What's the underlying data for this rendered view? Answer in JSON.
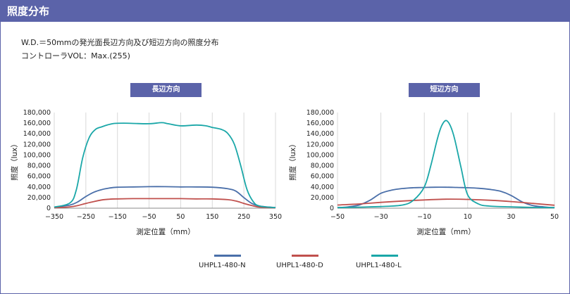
{
  "header": {
    "title": "照度分布"
  },
  "description": {
    "line1": "W.D.＝50mmの発光面長辺方向及び短辺方向の照度分布",
    "line2": "コントローラVOL：Max.(255)"
  },
  "colors": {
    "accent": "#5b63a9",
    "N": "#4a6fa9",
    "D": "#c0504d",
    "L": "#1aa7a8"
  },
  "legend": [
    {
      "key": "N",
      "label": "UHPL1-480-N"
    },
    {
      "key": "D",
      "label": "UHPL1-480-D"
    },
    {
      "key": "L",
      "label": "UHPL1-480-L"
    }
  ],
  "chart_data": [
    {
      "type": "line",
      "title": "長辺方向",
      "xlabel": "測定位置（mm）",
      "ylabel": "照度（lux）",
      "xlim": [
        -350,
        350
      ],
      "ylim": [
        0,
        180000
      ],
      "xticks": [
        -350,
        -250,
        -150,
        -50,
        50,
        150,
        250,
        350
      ],
      "xtick_labels": [
        "−350",
        "−250",
        "−150",
        "−50",
        "50",
        "150",
        "250",
        "350"
      ],
      "yticks": [
        0,
        20000,
        40000,
        60000,
        80000,
        100000,
        120000,
        140000,
        160000,
        180000
      ],
      "ytick_labels": [
        "0",
        "20,000",
        "40,000",
        "60,000",
        "80,000",
        "100,000",
        "120,000",
        "140,000",
        "160,000",
        "180,000"
      ],
      "grid": "vertical",
      "series": [
        {
          "name": "UHPL1-480-N",
          "key": "N",
          "x": [
            -350,
            -300,
            -275,
            -250,
            -225,
            -200,
            -175,
            -150,
            -100,
            -50,
            0,
            50,
            100,
            150,
            200,
            225,
            250,
            275,
            300,
            350
          ],
          "y": [
            2000,
            6000,
            12000,
            22000,
            30000,
            35000,
            38000,
            39500,
            40000,
            40500,
            40500,
            40000,
            40000,
            39500,
            36500,
            32000,
            20000,
            9000,
            4000,
            1000
          ]
        },
        {
          "name": "UHPL1-480-D",
          "key": "D",
          "x": [
            -350,
            -300,
            -275,
            -250,
            -225,
            -200,
            -175,
            -150,
            -100,
            -50,
            0,
            50,
            100,
            150,
            200,
            225,
            250,
            275,
            300,
            350
          ],
          "y": [
            1000,
            2500,
            5000,
            9000,
            12500,
            15500,
            17000,
            17500,
            18000,
            18000,
            18000,
            18000,
            17500,
            17500,
            16000,
            13500,
            9000,
            5000,
            2000,
            500
          ]
        },
        {
          "name": "UHPL1-480-L",
          "key": "L",
          "x": [
            -350,
            -300,
            -280,
            -260,
            -240,
            -220,
            -200,
            -180,
            -160,
            -130,
            -100,
            -50,
            -10,
            10,
            50,
            100,
            130,
            150,
            180,
            200,
            220,
            240,
            260,
            280,
            300,
            350
          ],
          "y": [
            2000,
            10000,
            35000,
            95000,
            132000,
            148000,
            153000,
            157000,
            159500,
            160000,
            159500,
            159000,
            161000,
            159000,
            155000,
            156500,
            155000,
            152000,
            148000,
            140000,
            120000,
            80000,
            35000,
            12000,
            4000,
            1000
          ]
        }
      ]
    },
    {
      "type": "line",
      "title": "短辺方向",
      "xlabel": "測定位置（mm）",
      "ylabel": "照度（lux）",
      "xlim": [
        -50,
        50
      ],
      "ylim": [
        0,
        180000
      ],
      "xticks": [
        -50,
        -30,
        -10,
        10,
        30,
        50
      ],
      "xtick_labels": [
        "−50",
        "−30",
        "−10",
        "10",
        "30",
        "50"
      ],
      "yticks": [
        0,
        20000,
        40000,
        60000,
        80000,
        100000,
        120000,
        140000,
        160000,
        180000
      ],
      "ytick_labels": [
        "0",
        "20,000",
        "40,000",
        "60,000",
        "80,000",
        "100,000",
        "120,000",
        "140,000",
        "160,000",
        "180,000"
      ],
      "grid": "vertical",
      "series": [
        {
          "name": "UHPL1-480-N",
          "key": "N",
          "x": [
            -50,
            -45,
            -40,
            -35,
            -30,
            -25,
            -20,
            -15,
            -10,
            -5,
            0,
            5,
            10,
            15,
            20,
            25,
            30,
            35,
            40,
            45,
            50
          ],
          "y": [
            1000,
            2500,
            6000,
            15000,
            28000,
            34000,
            37000,
            38500,
            39000,
            39500,
            39500,
            39000,
            38500,
            37500,
            35500,
            32000,
            24000,
            12000,
            5000,
            2500,
            1000
          ]
        },
        {
          "name": "UHPL1-480-D",
          "key": "D",
          "x": [
            -50,
            -40,
            -30,
            -20,
            -10,
            0,
            10,
            20,
            30,
            40,
            50
          ],
          "y": [
            6000,
            8000,
            11000,
            13500,
            15500,
            17000,
            16500,
            15000,
            12500,
            9000,
            5500
          ]
        },
        {
          "name": "UHPL1-480-L",
          "key": "L",
          "x": [
            -50,
            -40,
            -30,
            -20,
            -15,
            -10,
            -7,
            -4,
            -2,
            0,
            2,
            4,
            7,
            10,
            15,
            20,
            30,
            40,
            50
          ],
          "y": [
            1000,
            2000,
            3000,
            6000,
            15000,
            40000,
            80000,
            130000,
            155000,
            165000,
            155000,
            130000,
            75000,
            25000,
            8000,
            4000,
            2500,
            1500,
            1000
          ]
        }
      ]
    }
  ]
}
